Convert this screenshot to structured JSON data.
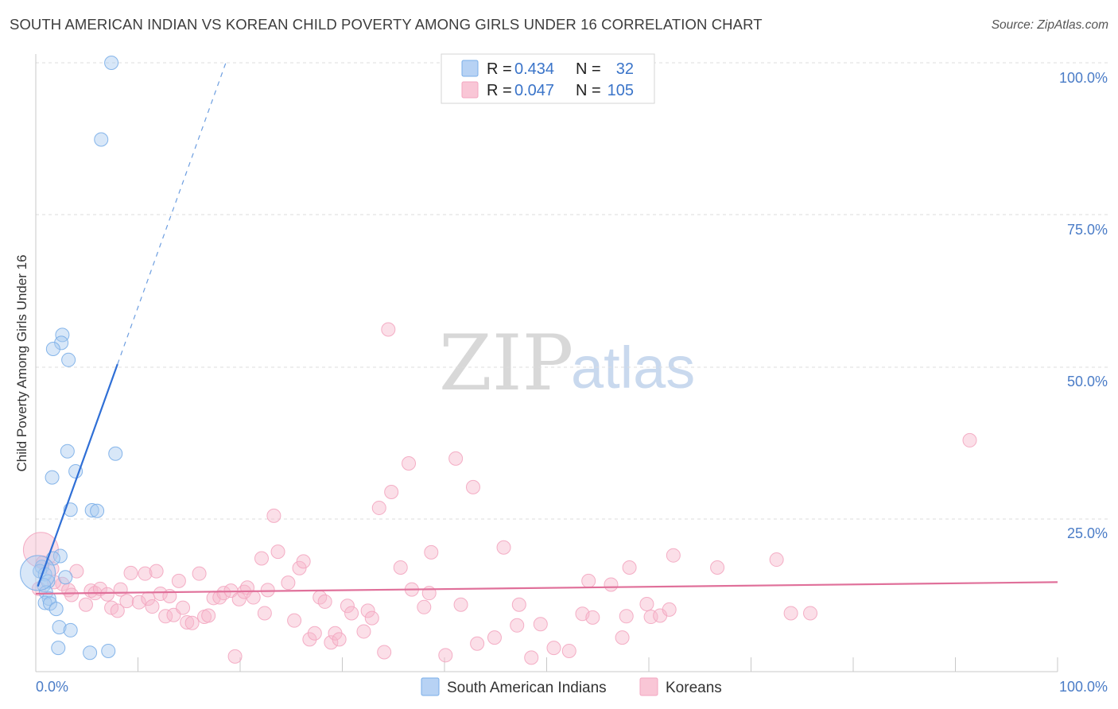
{
  "title": "SOUTH AMERICAN INDIAN VS KOREAN CHILD POVERTY AMONG GIRLS UNDER 16 CORRELATION CHART",
  "source": "Source: ZipAtlas.com",
  "watermark": {
    "zip": "ZIP",
    "atlas": "atlas"
  },
  "colors": {
    "blue": "#7aaee8",
    "blue_line": "#2f6fd6",
    "pink": "#f3a6c0",
    "pink_line": "#e0709a",
    "accent_text": "#3a74c9"
  },
  "legend": {
    "rows": [
      {
        "r_label": "R =",
        "r_value": "0.434",
        "n_label": "N =",
        "n_value": "32"
      },
      {
        "r_label": "R =",
        "r_value": "0.047",
        "n_label": "N =",
        "n_value": "105"
      }
    ]
  },
  "chart_data": {
    "type": "scatter",
    "title": "SOUTH AMERICAN INDIAN VS KOREAN CHILD POVERTY AMONG GIRLS UNDER 16 CORRELATION CHART",
    "xlabel": "",
    "ylabel": "Child Poverty Among Girls Under 16",
    "xlim": [
      0,
      100
    ],
    "ylim": [
      0,
      100
    ],
    "x_tick_labels": [
      "0.0%",
      "100.0%"
    ],
    "y_tick_labels": [
      "100.0%",
      "75.0%",
      "50.0%",
      "25.0%"
    ],
    "y_tick_values": [
      100,
      75,
      50,
      25
    ],
    "series": [
      {
        "name": "South American Indians",
        "r": 0.434,
        "n": 32,
        "points": [
          [
            7.4,
            100
          ],
          [
            6.4,
            87.4
          ],
          [
            2.6,
            55.3
          ],
          [
            2.5,
            54.0
          ],
          [
            1.7,
            53.0
          ],
          [
            3.2,
            51.2
          ],
          [
            3.1,
            36.2
          ],
          [
            7.8,
            35.8
          ],
          [
            3.9,
            32.9
          ],
          [
            1.6,
            31.9
          ],
          [
            3.4,
            26.6
          ],
          [
            5.5,
            26.5
          ],
          [
            6.0,
            26.4
          ],
          [
            2.4,
            19.0
          ],
          [
            1.7,
            18.6
          ],
          [
            0.6,
            17.2
          ],
          [
            0.4,
            16.5
          ],
          [
            0.9,
            16.0
          ],
          [
            2.9,
            15.5
          ],
          [
            1.2,
            14.8
          ],
          [
            0.8,
            14.2
          ],
          [
            1.0,
            13.0
          ],
          [
            1.3,
            12.0
          ],
          [
            0.9,
            11.3
          ],
          [
            1.4,
            11.2
          ],
          [
            2.0,
            10.3
          ],
          [
            2.3,
            7.3
          ],
          [
            3.4,
            6.8
          ],
          [
            2.2,
            3.9
          ],
          [
            5.3,
            3.1
          ],
          [
            7.1,
            3.4
          ],
          [
            0.2,
            16.2
          ]
        ],
        "trend": {
          "x0": 0.2,
          "y0": 14.0,
          "x1": 8.0,
          "y1": 50.5,
          "dash_x1": 18.6,
          "dash_y1": 100
        }
      },
      {
        "name": "Koreans",
        "r": 0.047,
        "n": 105,
        "points": [
          [
            0.5,
            20.0
          ],
          [
            0.7,
            17.9
          ],
          [
            1.6,
            16.9
          ],
          [
            2.6,
            14.4
          ],
          [
            1.8,
            14.7
          ],
          [
            3.2,
            13.4
          ],
          [
            3.5,
            12.6
          ],
          [
            4.0,
            16.5
          ],
          [
            4.9,
            11.0
          ],
          [
            5.4,
            13.3
          ],
          [
            5.8,
            12.9
          ],
          [
            6.3,
            13.6
          ],
          [
            7.0,
            12.7
          ],
          [
            7.4,
            10.5
          ],
          [
            8.0,
            10.0
          ],
          [
            8.3,
            13.5
          ],
          [
            8.9,
            11.6
          ],
          [
            9.3,
            16.2
          ],
          [
            10.1,
            11.4
          ],
          [
            10.7,
            16.1
          ],
          [
            11.0,
            12.0
          ],
          [
            11.4,
            10.7
          ],
          [
            11.8,
            16.5
          ],
          [
            12.2,
            12.8
          ],
          [
            12.7,
            9.1
          ],
          [
            13.1,
            12.4
          ],
          [
            13.5,
            9.3
          ],
          [
            14.0,
            14.9
          ],
          [
            14.4,
            10.5
          ],
          [
            14.8,
            8.1
          ],
          [
            15.3,
            8.0
          ],
          [
            16.0,
            16.1
          ],
          [
            16.5,
            9.0
          ],
          [
            16.9,
            9.2
          ],
          [
            17.4,
            12.1
          ],
          [
            18.0,
            12.2
          ],
          [
            18.4,
            12.9
          ],
          [
            19.1,
            13.3
          ],
          [
            19.5,
            2.5
          ],
          [
            19.9,
            11.9
          ],
          [
            20.4,
            13.1
          ],
          [
            20.7,
            13.8
          ],
          [
            21.3,
            12.2
          ],
          [
            22.1,
            18.6
          ],
          [
            22.4,
            9.6
          ],
          [
            22.7,
            13.4
          ],
          [
            23.3,
            25.6
          ],
          [
            23.7,
            19.7
          ],
          [
            24.7,
            14.6
          ],
          [
            25.3,
            8.4
          ],
          [
            25.8,
            17.0
          ],
          [
            26.2,
            18.1
          ],
          [
            26.8,
            5.3
          ],
          [
            27.3,
            6.3
          ],
          [
            27.8,
            12.2
          ],
          [
            28.3,
            11.5
          ],
          [
            28.9,
            4.8
          ],
          [
            29.3,
            6.3
          ],
          [
            29.7,
            5.3
          ],
          [
            30.5,
            10.8
          ],
          [
            30.9,
            9.6
          ],
          [
            32.1,
            6.6
          ],
          [
            32.5,
            10.0
          ],
          [
            32.9,
            8.8
          ],
          [
            33.6,
            26.9
          ],
          [
            34.1,
            3.2
          ],
          [
            34.5,
            56.2
          ],
          [
            34.8,
            29.5
          ],
          [
            35.7,
            17.1
          ],
          [
            36.5,
            34.2
          ],
          [
            36.8,
            13.5
          ],
          [
            38.0,
            10.6
          ],
          [
            38.5,
            12.9
          ],
          [
            38.7,
            19.6
          ],
          [
            40.1,
            2.7
          ],
          [
            41.1,
            35.0
          ],
          [
            41.6,
            11.0
          ],
          [
            42.8,
            30.3
          ],
          [
            43.2,
            4.6
          ],
          [
            44.9,
            5.6
          ],
          [
            45.8,
            20.4
          ],
          [
            47.1,
            7.6
          ],
          [
            47.3,
            11.0
          ],
          [
            48.5,
            2.3
          ],
          [
            49.4,
            7.8
          ],
          [
            50.7,
            3.9
          ],
          [
            52.2,
            3.4
          ],
          [
            53.5,
            9.5
          ],
          [
            54.1,
            14.9
          ],
          [
            54.5,
            8.9
          ],
          [
            56.3,
            14.3
          ],
          [
            57.4,
            5.6
          ],
          [
            57.8,
            9.1
          ],
          [
            58.1,
            17.1
          ],
          [
            59.8,
            11.1
          ],
          [
            60.2,
            9.0
          ],
          [
            61.1,
            9.2
          ],
          [
            62.0,
            10.2
          ],
          [
            62.4,
            19.1
          ],
          [
            66.7,
            17.1
          ],
          [
            72.5,
            18.4
          ],
          [
            73.9,
            9.6
          ],
          [
            75.8,
            9.6
          ],
          [
            91.4,
            38.0
          ],
          [
            0.3,
            13.6
          ]
        ],
        "trend": {
          "x0": 0,
          "y0": 12.8,
          "x1": 100,
          "y1": 14.7
        }
      }
    ]
  }
}
